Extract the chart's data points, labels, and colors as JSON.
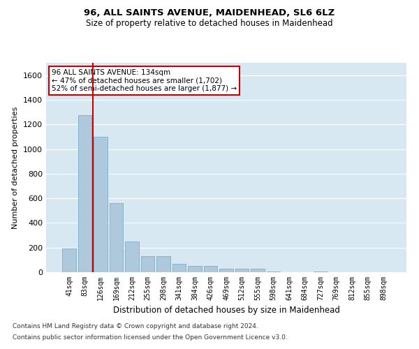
{
  "title1": "96, ALL SAINTS AVENUE, MAIDENHEAD, SL6 6LZ",
  "title2": "Size of property relative to detached houses in Maidenhead",
  "xlabel": "Distribution of detached houses by size in Maidenhead",
  "ylabel": "Number of detached properties",
  "footnote1": "Contains HM Land Registry data © Crown copyright and database right 2024.",
  "footnote2": "Contains public sector information licensed under the Open Government Licence v3.0.",
  "annotation_line1": "96 ALL SAINTS AVENUE: 134sqm",
  "annotation_line2": "← 47% of detached houses are smaller (1,702)",
  "annotation_line3": "52% of semi-detached houses are larger (1,877) →",
  "bar_color": "#aec9db",
  "bar_edge_color": "#7aaec8",
  "vertical_line_color": "#cc0000",
  "annotation_box_edge_color": "#cc0000",
  "background_color": "#d8e8f3",
  "categories": [
    "41sqm",
    "83sqm",
    "126sqm",
    "169sqm",
    "212sqm",
    "255sqm",
    "298sqm",
    "341sqm",
    "384sqm",
    "426sqm",
    "469sqm",
    "512sqm",
    "555sqm",
    "598sqm",
    "641sqm",
    "684sqm",
    "727sqm",
    "769sqm",
    "812sqm",
    "855sqm",
    "898sqm"
  ],
  "values": [
    190,
    1275,
    1100,
    560,
    250,
    130,
    130,
    70,
    50,
    50,
    30,
    30,
    30,
    5,
    0,
    0,
    5,
    0,
    0,
    0,
    0
  ],
  "ylim": [
    0,
    1700
  ],
  "yticks": [
    0,
    200,
    400,
    600,
    800,
    1000,
    1200,
    1400,
    1600
  ],
  "bar_width": 0.85,
  "grid_color": "#ffffff",
  "vline_x": 1.5
}
